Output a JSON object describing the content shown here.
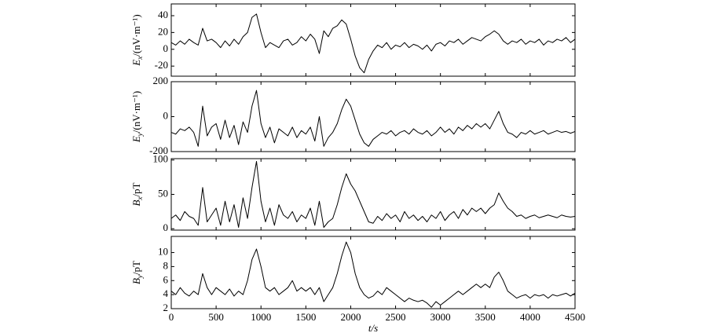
{
  "chart_data": [
    {
      "type": "line",
      "ylabel": {
        "symbol": "E",
        "sub": "x",
        "unit": "/(nV·m⁻¹)"
      },
      "color": "#000000",
      "xlim": [
        0,
        4500
      ],
      "ylim": [
        -32,
        54
      ],
      "yticks": [
        -20,
        0,
        20,
        40
      ],
      "x": [
        0,
        50,
        100,
        150,
        200,
        250,
        300,
        350,
        400,
        450,
        500,
        550,
        600,
        650,
        700,
        750,
        800,
        850,
        900,
        950,
        1000,
        1050,
        1100,
        1150,
        1200,
        1250,
        1300,
        1350,
        1400,
        1450,
        1500,
        1550,
        1600,
        1650,
        1700,
        1750,
        1800,
        1850,
        1900,
        1950,
        2000,
        2050,
        2100,
        2150,
        2200,
        2250,
        2300,
        2350,
        2400,
        2450,
        2500,
        2550,
        2600,
        2650,
        2700,
        2750,
        2800,
        2850,
        2900,
        2950,
        3000,
        3050,
        3100,
        3150,
        3200,
        3250,
        3300,
        3350,
        3400,
        3450,
        3500,
        3550,
        3600,
        3650,
        3700,
        3750,
        3800,
        3850,
        3900,
        3950,
        4000,
        4050,
        4100,
        4150,
        4200,
        4250,
        4300,
        4350,
        4400,
        4450,
        4500
      ],
      "values": [
        8,
        5,
        10,
        6,
        12,
        8,
        5,
        25,
        10,
        12,
        8,
        2,
        10,
        4,
        12,
        6,
        15,
        20,
        38,
        42,
        20,
        2,
        8,
        5,
        2,
        10,
        12,
        5,
        8,
        15,
        10,
        18,
        12,
        -5,
        22,
        15,
        25,
        28,
        35,
        30,
        12,
        -8,
        -22,
        -28,
        -12,
        -2,
        5,
        2,
        8,
        0,
        5,
        3,
        8,
        2,
        6,
        4,
        0,
        5,
        -2,
        6,
        8,
        4,
        10,
        8,
        12,
        6,
        10,
        14,
        12,
        10,
        15,
        18,
        22,
        18,
        10,
        6,
        10,
        8,
        12,
        6,
        10,
        8,
        12,
        5,
        10,
        8,
        12,
        10,
        14,
        8,
        12
      ]
    },
    {
      "type": "line",
      "ylabel": {
        "symbol": "E",
        "sub": "y",
        "unit": "/(nV·m⁻¹)"
      },
      "color": "#000000",
      "xlim": [
        0,
        4500
      ],
      "ylim": [
        -200,
        200
      ],
      "yticks": [
        -200,
        0,
        200
      ],
      "x": [
        0,
        50,
        100,
        150,
        200,
        250,
        300,
        350,
        400,
        450,
        500,
        550,
        600,
        650,
        700,
        750,
        800,
        850,
        900,
        950,
        1000,
        1050,
        1100,
        1150,
        1200,
        1250,
        1300,
        1350,
        1400,
        1450,
        1500,
        1550,
        1600,
        1650,
        1700,
        1750,
        1800,
        1850,
        1900,
        1950,
        2000,
        2050,
        2100,
        2150,
        2200,
        2250,
        2300,
        2350,
        2400,
        2450,
        2500,
        2550,
        2600,
        2650,
        2700,
        2750,
        2800,
        2850,
        2900,
        2950,
        3000,
        3050,
        3100,
        3150,
        3200,
        3250,
        3300,
        3350,
        3400,
        3450,
        3500,
        3550,
        3600,
        3650,
        3700,
        3750,
        3800,
        3850,
        3900,
        3950,
        4000,
        4050,
        4100,
        4150,
        4200,
        4250,
        4300,
        4350,
        4400,
        4450,
        4500
      ],
      "values": [
        -90,
        -100,
        -70,
        -80,
        -60,
        -90,
        -170,
        60,
        -110,
        -60,
        -40,
        -130,
        -20,
        -120,
        -50,
        -160,
        -30,
        -90,
        60,
        150,
        -40,
        -120,
        -60,
        -150,
        -70,
        -90,
        -110,
        -60,
        -120,
        -80,
        -100,
        -60,
        -140,
        0,
        -170,
        -120,
        -90,
        -40,
        40,
        100,
        60,
        -20,
        -100,
        -150,
        -170,
        -130,
        -110,
        -90,
        -100,
        -80,
        -110,
        -90,
        -80,
        -100,
        -70,
        -90,
        -100,
        -80,
        -110,
        -90,
        -60,
        -90,
        -70,
        -100,
        -60,
        -80,
        -50,
        -70,
        -40,
        -60,
        -40,
        -70,
        -20,
        30,
        -40,
        -90,
        -100,
        -120,
        -90,
        -100,
        -80,
        -100,
        -90,
        -80,
        -100,
        -90,
        -80,
        -90,
        -85,
        -95,
        -85
      ]
    },
    {
      "type": "line",
      "ylabel": {
        "symbol": "B",
        "sub": "x",
        "unit": "/pT"
      },
      "color": "#000000",
      "xlim": [
        0,
        4500
      ],
      "ylim": [
        -2,
        102
      ],
      "yticks": [
        0,
        50,
        100
      ],
      "x": [
        0,
        50,
        100,
        150,
        200,
        250,
        300,
        350,
        400,
        450,
        500,
        550,
        600,
        650,
        700,
        750,
        800,
        850,
        900,
        950,
        1000,
        1050,
        1100,
        1150,
        1200,
        1250,
        1300,
        1350,
        1400,
        1450,
        1500,
        1550,
        1600,
        1650,
        1700,
        1750,
        1800,
        1850,
        1900,
        1950,
        2000,
        2050,
        2100,
        2150,
        2200,
        2250,
        2300,
        2350,
        2400,
        2450,
        2500,
        2550,
        2600,
        2650,
        2700,
        2750,
        2800,
        2850,
        2900,
        2950,
        3000,
        3050,
        3100,
        3150,
        3200,
        3250,
        3300,
        3350,
        3400,
        3450,
        3500,
        3550,
        3600,
        3650,
        3700,
        3750,
        3800,
        3850,
        3900,
        3950,
        4000,
        4050,
        4100,
        4150,
        4200,
        4250,
        4300,
        4350,
        4400,
        4450,
        4500
      ],
      "values": [
        15,
        20,
        12,
        25,
        18,
        15,
        5,
        60,
        10,
        20,
        30,
        5,
        40,
        10,
        35,
        2,
        45,
        15,
        60,
        98,
        40,
        10,
        30,
        5,
        35,
        20,
        15,
        25,
        10,
        20,
        15,
        30,
        5,
        40,
        2,
        10,
        15,
        35,
        60,
        80,
        65,
        55,
        40,
        25,
        10,
        8,
        18,
        12,
        22,
        15,
        20,
        10,
        25,
        15,
        20,
        12,
        18,
        10,
        20,
        15,
        25,
        12,
        20,
        25,
        15,
        28,
        20,
        30,
        25,
        30,
        22,
        30,
        35,
        52,
        40,
        30,
        25,
        18,
        20,
        15,
        18,
        20,
        16,
        18,
        20,
        18,
        16,
        20,
        18,
        17,
        18
      ]
    },
    {
      "type": "line",
      "ylabel": {
        "symbol": "B",
        "sub": "y",
        "unit": "/pT"
      },
      "color": "#000000",
      "xlabel": "t/s",
      "xlim": [
        0,
        4500
      ],
      "xticks": [
        0,
        500,
        1000,
        1500,
        2000,
        2500,
        3000,
        3500,
        4000,
        4500
      ],
      "ylim": [
        2,
        12.3
      ],
      "yticks": [
        2,
        4,
        6,
        8,
        10
      ],
      "x": [
        0,
        50,
        100,
        150,
        200,
        250,
        300,
        350,
        400,
        450,
        500,
        550,
        600,
        650,
        700,
        750,
        800,
        850,
        900,
        950,
        1000,
        1050,
        1100,
        1150,
        1200,
        1250,
        1300,
        1350,
        1400,
        1450,
        1500,
        1550,
        1600,
        1650,
        1700,
        1750,
        1800,
        1850,
        1900,
        1950,
        2000,
        2050,
        2100,
        2150,
        2200,
        2250,
        2300,
        2350,
        2400,
        2450,
        2500,
        2550,
        2600,
        2650,
        2700,
        2750,
        2800,
        2850,
        2900,
        2950,
        3000,
        3050,
        3100,
        3150,
        3200,
        3250,
        3300,
        3350,
        3400,
        3450,
        3500,
        3550,
        3600,
        3650,
        3700,
        3750,
        3800,
        3850,
        3900,
        3950,
        4000,
        4050,
        4100,
        4150,
        4200,
        4250,
        4300,
        4350,
        4400,
        4450,
        4500
      ],
      "values": [
        4.5,
        4,
        5,
        4.2,
        3.8,
        4.5,
        4,
        7,
        5,
        4,
        5,
        4.5,
        4,
        4.8,
        3.8,
        4.5,
        4,
        6,
        9,
        10.5,
        8,
        5,
        4.5,
        5,
        4,
        4.5,
        5,
        6,
        4.5,
        5,
        4.5,
        5,
        4,
        5,
        3,
        4,
        5,
        7,
        9.5,
        11.5,
        10,
        7,
        5,
        4,
        3.5,
        3.8,
        4.5,
        4,
        5,
        4.5,
        4,
        3.5,
        3,
        3.5,
        3.2,
        3,
        3.2,
        2.8,
        2.2,
        3,
        2.5,
        3,
        3.5,
        4,
        4.5,
        4,
        4.5,
        5,
        5.5,
        5,
        5.5,
        5,
        6.5,
        7.2,
        6,
        4.5,
        4,
        3.5,
        3.8,
        4,
        3.5,
        4,
        3.8,
        4,
        3.5,
        4,
        3.8,
        4,
        4.2,
        3.8,
        4.2
      ]
    }
  ]
}
